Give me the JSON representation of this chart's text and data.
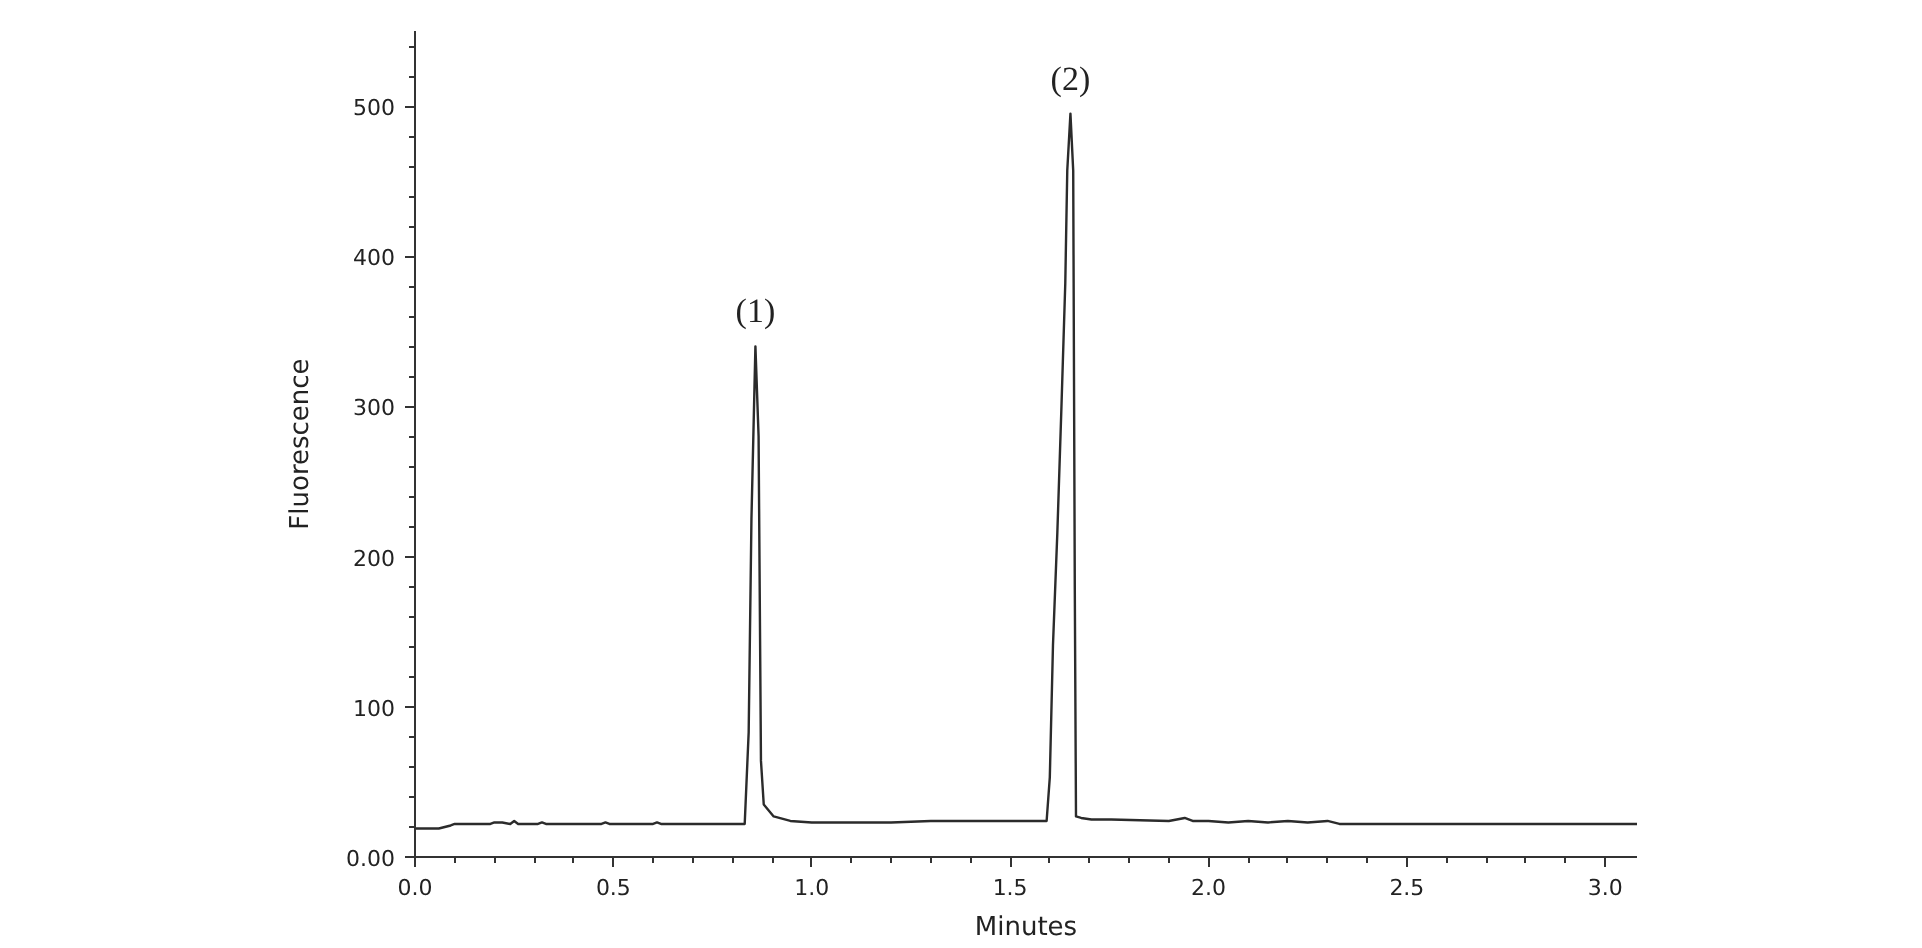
{
  "chart_data": {
    "type": "line",
    "xlabel": "Minutes",
    "ylabel": "Fluorescence",
    "color": "#2b2b2b",
    "line_style": "solid",
    "x": [
      0,
      0.06,
      0.09,
      0.1,
      0.19,
      0.2,
      0.22,
      0.24,
      0.25,
      0.26,
      0.31,
      0.32,
      0.33,
      0.47,
      0.48,
      0.49,
      0.6,
      0.61,
      0.62,
      0.831,
      0.841,
      0.848,
      0.858,
      0.866,
      0.872,
      0.879,
      0.904,
      0.946,
      1.0,
      1.1,
      1.2,
      1.3,
      1.4,
      1.5,
      1.592,
      1.6,
      1.608,
      1.619,
      1.629,
      1.639,
      1.644,
      1.652,
      1.659,
      1.663,
      1.666,
      1.679,
      1.705,
      1.755,
      1.9,
      1.94,
      1.96,
      2.0,
      2.05,
      2.1,
      2.15,
      2.2,
      2.25,
      2.3,
      2.33,
      2.5,
      3.08
    ],
    "values": [
      19,
      19,
      21,
      22,
      22,
      23,
      23,
      22,
      24,
      22,
      22,
      23,
      22,
      22,
      23,
      22,
      22,
      23,
      22,
      22,
      83,
      225,
      340,
      280,
      64,
      35,
      27,
      24,
      23,
      23,
      23,
      24,
      24,
      24,
      24,
      53,
      141,
      216,
      297,
      382,
      457,
      495,
      457,
      178,
      27,
      26,
      25,
      25,
      24,
      26,
      24,
      24,
      23,
      24,
      23,
      24,
      23,
      24,
      22,
      22,
      22
    ],
    "xlim": [
      0,
      3.08
    ],
    "ylim": [
      0,
      550
    ],
    "xticks": [
      {
        "value": 0,
        "label": "0.0"
      },
      {
        "value": 0.1,
        "label": null
      },
      {
        "value": 0.2,
        "label": null
      },
      {
        "value": 0.3,
        "label": null
      },
      {
        "value": 0.4,
        "label": null
      },
      0.5,
      {
        "value": 0.6,
        "label": null
      },
      {
        "value": 0.7,
        "label": null
      },
      {
        "value": 0.8,
        "label": null
      },
      {
        "value": 0.9,
        "label": null
      },
      {
        "value": 1,
        "label": "1.0"
      },
      {
        "value": 1.1,
        "label": null
      },
      {
        "value": 1.2,
        "label": null
      },
      {
        "value": 1.3,
        "label": null
      },
      {
        "value": 1.4,
        "label": null
      },
      1.5,
      {
        "value": 1.6,
        "label": null
      },
      {
        "value": 1.7,
        "label": null
      },
      {
        "value": 1.8,
        "label": null
      },
      {
        "value": 1.9,
        "label": null
      },
      {
        "value": 2,
        "label": "2.0"
      },
      {
        "value": 2.1,
        "label": null
      },
      {
        "value": 2.2,
        "label": null
      },
      {
        "value": 2.3,
        "label": null
      },
      {
        "value": 2.4,
        "label": null
      },
      2.5,
      {
        "value": 2.6,
        "label": null
      },
      {
        "value": 2.7,
        "label": null
      },
      {
        "value": 2.8,
        "label": null
      },
      {
        "value": 2.9,
        "label": null
      },
      {
        "value": 3,
        "label": "3.0"
      }
    ],
    "yticks": [
      {
        "value": 0,
        "label": "0.00"
      },
      {
        "value": 20,
        "label": null
      },
      {
        "value": 40,
        "label": null
      },
      {
        "value": 60,
        "label": null
      },
      {
        "value": 80,
        "label": null
      },
      100,
      {
        "value": 120,
        "label": null
      },
      {
        "value": 140,
        "label": null
      },
      {
        "value": 160,
        "label": null
      },
      {
        "value": 180,
        "label": null
      },
      200,
      {
        "value": 220,
        "label": null
      },
      {
        "value": 240,
        "label": null
      },
      {
        "value": 260,
        "label": null
      },
      {
        "value": 280,
        "label": null
      },
      300,
      {
        "value": 320,
        "label": null
      },
      {
        "value": 340,
        "label": null
      },
      {
        "value": 360,
        "label": null
      },
      {
        "value": 380,
        "label": null
      },
      400,
      {
        "value": 420,
        "label": null
      },
      {
        "value": 440,
        "label": null
      },
      {
        "value": 460,
        "label": null
      },
      {
        "value": 480,
        "label": null
      },
      500,
      {
        "value": 520,
        "label": null
      },
      {
        "value": 540,
        "label": null
      }
    ],
    "annotations": [
      {
        "text": "(1)",
        "x": 0.858,
        "y": 340
      },
      {
        "text": "(2)",
        "x": 1.652,
        "y": 495
      }
    ]
  }
}
